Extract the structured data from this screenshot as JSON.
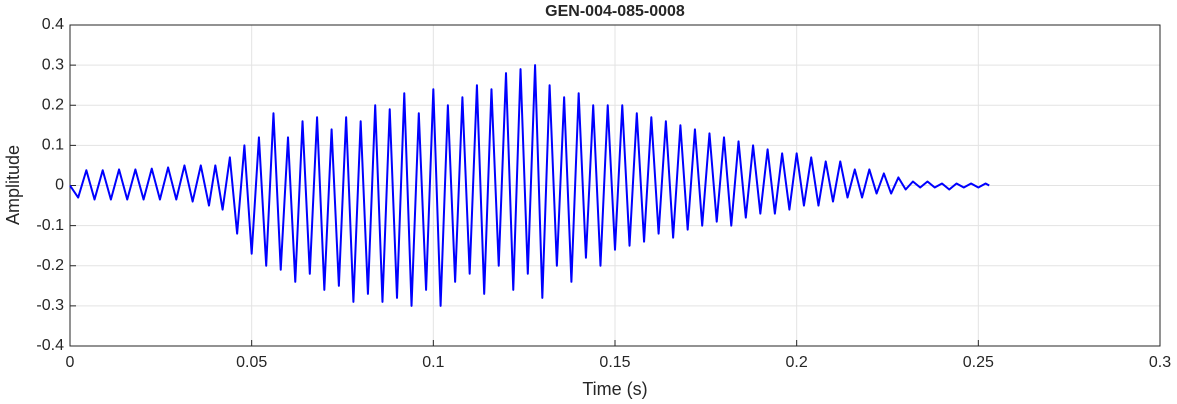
{
  "chart_data": {
    "type": "line",
    "title": "GEN-004-085-0008",
    "xlabel": "Time (s)",
    "ylabel": "Amplitude",
    "x": [
      0,
      0.00225,
      0.0045,
      0.00675,
      0.009,
      0.01125,
      0.0135,
      0.01575,
      0.018,
      0.02025,
      0.0225,
      0.02475,
      0.027,
      0.02925,
      0.0315,
      0.03375,
      0.036,
      0.03825,
      0.04,
      0.042,
      0.044,
      0.046,
      0.048,
      0.05,
      0.052,
      0.054,
      0.056,
      0.058,
      0.06,
      0.062,
      0.064,
      0.066,
      0.068,
      0.07,
      0.072,
      0.074,
      0.076,
      0.078,
      0.08,
      0.082,
      0.084,
      0.086,
      0.088,
      0.09,
      0.092,
      0.094,
      0.096,
      0.098,
      0.1,
      0.102,
      0.104,
      0.106,
      0.108,
      0.11,
      0.112,
      0.114,
      0.116,
      0.118,
      0.12,
      0.122,
      0.124,
      0.126,
      0.128,
      0.13,
      0.132,
      0.134,
      0.136,
      0.138,
      0.14,
      0.142,
      0.144,
      0.146,
      0.148,
      0.15,
      0.152,
      0.154,
      0.156,
      0.158,
      0.16,
      0.162,
      0.164,
      0.166,
      0.168,
      0.17,
      0.172,
      0.174,
      0.176,
      0.178,
      0.18,
      0.182,
      0.184,
      0.186,
      0.188,
      0.19,
      0.192,
      0.194,
      0.196,
      0.198,
      0.2,
      0.202,
      0.204,
      0.206,
      0.208,
      0.21,
      0.212,
      0.214,
      0.216,
      0.218,
      0.22,
      0.222,
      0.224,
      0.226,
      0.228,
      0.23,
      0.232,
      0.234,
      0.236,
      0.238,
      0.24,
      0.242,
      0.244,
      0.246,
      0.248,
      0.25,
      0.252,
      0.253
    ],
    "series": [
      {
        "name": "Amplitude",
        "color": "#0000ff",
        "values": [
          0,
          -0.03,
          0.038,
          -0.035,
          0.038,
          -0.035,
          0.04,
          -0.035,
          0.04,
          -0.035,
          0.042,
          -0.035,
          0.045,
          -0.035,
          0.05,
          -0.04,
          0.05,
          -0.05,
          0.05,
          -0.06,
          0.07,
          -0.12,
          0.1,
          -0.17,
          0.12,
          -0.2,
          0.18,
          -0.21,
          0.12,
          -0.24,
          0.16,
          -0.22,
          0.17,
          -0.26,
          0.14,
          -0.25,
          0.17,
          -0.29,
          0.16,
          -0.27,
          0.2,
          -0.29,
          0.19,
          -0.28,
          0.23,
          -0.3,
          0.18,
          -0.26,
          0.24,
          -0.3,
          0.2,
          -0.24,
          0.22,
          -0.22,
          0.25,
          -0.27,
          0.24,
          -0.2,
          0.28,
          -0.26,
          0.29,
          -0.22,
          0.3,
          -0.28,
          0.25,
          -0.2,
          0.22,
          -0.24,
          0.23,
          -0.18,
          0.2,
          -0.2,
          0.2,
          -0.16,
          0.2,
          -0.15,
          0.18,
          -0.14,
          0.17,
          -0.12,
          0.16,
          -0.13,
          0.15,
          -0.11,
          0.14,
          -0.1,
          0.13,
          -0.09,
          0.12,
          -0.1,
          0.11,
          -0.08,
          0.1,
          -0.07,
          0.09,
          -0.07,
          0.08,
          -0.06,
          0.08,
          -0.05,
          0.07,
          -0.05,
          0.06,
          -0.04,
          0.06,
          -0.03,
          0.04,
          -0.03,
          0.04,
          -0.02,
          0.03,
          -0.02,
          0.02,
          -0.01,
          0.01,
          -0.005,
          0.01,
          -0.005,
          0.005,
          -0.01,
          0.005,
          -0.005,
          0.005,
          -0.005,
          0.005,
          0
        ]
      }
    ],
    "xlim": [
      0,
      0.3
    ],
    "xticks": [
      0,
      0.05,
      0.1,
      0.15,
      0.2,
      0.25,
      0.3
    ],
    "ylim": [
      -0.4,
      0.4
    ],
    "yticks": [
      -0.4,
      -0.3,
      -0.2,
      -0.1,
      0,
      0.1,
      0.2,
      0.3,
      0.4
    ],
    "grid": true
  }
}
